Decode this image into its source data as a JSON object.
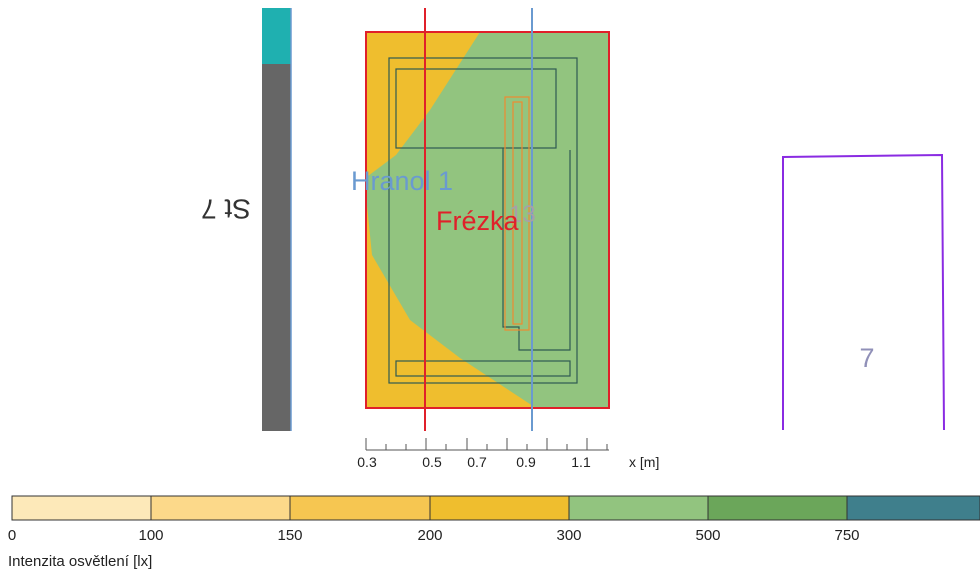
{
  "labels": {
    "wall": "St 7",
    "hranol": "Hranol 1",
    "frezka": "Frézka",
    "hidden_number": "13",
    "room": "7"
  },
  "axis": {
    "ticks": [
      "0.3",
      "0.5",
      "0.7",
      "0.9",
      "1.1"
    ],
    "unit": "x [m]"
  },
  "legend": {
    "title": "Intenzita osvětlení [lx]",
    "ticks": [
      "0",
      "100",
      "150",
      "200",
      "300",
      "500",
      "750"
    ],
    "colors": [
      "#fde9b9",
      "#fcd98a",
      "#f6c651",
      "#efbe2e",
      "#92c47f",
      "#6ba65a",
      "#3f7f8c"
    ]
  },
  "colors": {
    "frame_red": "#e0202a",
    "line_blue": "#6a9ad0",
    "outline_dark": "#2f5a52",
    "fill_yellow": "#efbe2e",
    "fill_green": "#92c47f",
    "wall_gray": "#666666",
    "wall_teal": "#1fb0b0",
    "room_purple": "#8a2be2",
    "orange": "#f08a30"
  }
}
